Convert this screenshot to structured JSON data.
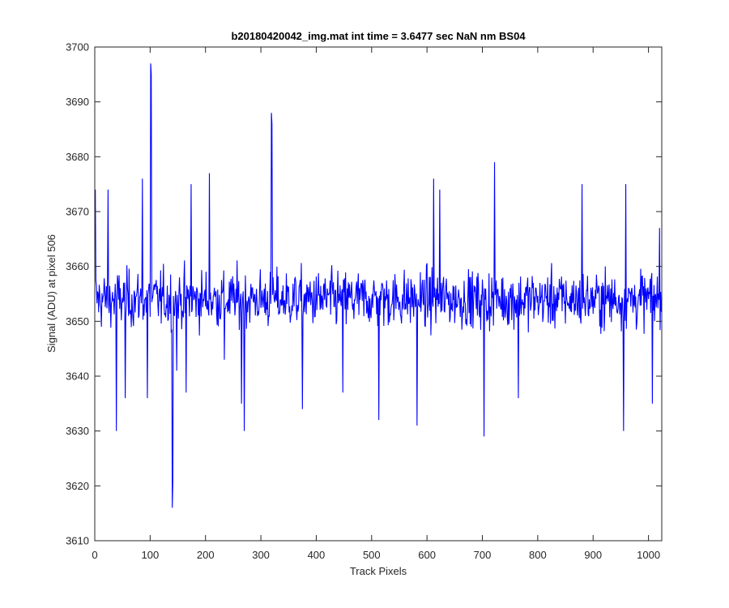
{
  "chart_data": {
    "type": "line",
    "title": "b20180420042_img.mat int time = 3.6477 sec  NaN nm BS04",
    "xlabel": "Track Pixels",
    "ylabel": "Signal (ADU) at pixel 506",
    "xlim": [
      0,
      1024
    ],
    "ylim": [
      3610,
      3700
    ],
    "xticks": [
      0,
      100,
      200,
      300,
      400,
      500,
      600,
      700,
      800,
      900,
      1000
    ],
    "yticks": [
      3610,
      3620,
      3630,
      3640,
      3650,
      3660,
      3670,
      3680,
      3690,
      3700
    ],
    "grid": false,
    "legend": "none",
    "line_color": "#0000ff",
    "series": [
      {
        "x_start": 1,
        "x_step": 1,
        "baseline": 3654,
        "noise_range": [
          3642,
          3666
        ],
        "notable_points": [
          {
            "x": 1,
            "y": 3674
          },
          {
            "x": 24,
            "y": 3674
          },
          {
            "x": 39,
            "y": 3630
          },
          {
            "x": 55,
            "y": 3636
          },
          {
            "x": 86,
            "y": 3676
          },
          {
            "x": 95,
            "y": 3636
          },
          {
            "x": 101,
            "y": 3697
          },
          {
            "x": 102,
            "y": 3695
          },
          {
            "x": 140,
            "y": 3616
          },
          {
            "x": 141,
            "y": 3621
          },
          {
            "x": 148,
            "y": 3641
          },
          {
            "x": 165,
            "y": 3637
          },
          {
            "x": 174,
            "y": 3675
          },
          {
            "x": 207,
            "y": 3677
          },
          {
            "x": 234,
            "y": 3643
          },
          {
            "x": 265,
            "y": 3635
          },
          {
            "x": 270,
            "y": 3630
          },
          {
            "x": 319,
            "y": 3688
          },
          {
            "x": 320,
            "y": 3686
          },
          {
            "x": 375,
            "y": 3634
          },
          {
            "x": 448,
            "y": 3637
          },
          {
            "x": 513,
            "y": 3632
          },
          {
            "x": 582,
            "y": 3631
          },
          {
            "x": 612,
            "y": 3676
          },
          {
            "x": 623,
            "y": 3674
          },
          {
            "x": 703,
            "y": 3629
          },
          {
            "x": 708,
            "y": 3650
          },
          {
            "x": 722,
            "y": 3679
          },
          {
            "x": 765,
            "y": 3636
          },
          {
            "x": 880,
            "y": 3675
          },
          {
            "x": 959,
            "y": 3675
          },
          {
            "x": 955,
            "y": 3630
          },
          {
            "x": 1007,
            "y": 3635
          },
          {
            "x": 1020,
            "y": 3667
          }
        ]
      }
    ]
  }
}
